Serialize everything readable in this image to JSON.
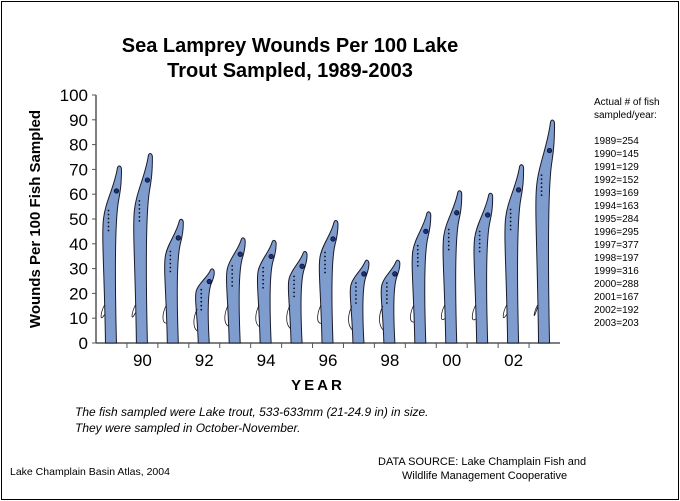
{
  "chart_data": {
    "type": "bar",
    "title": "Sea Lamprey Wounds Per 100 Lake Trout Sampled, 1989-2003",
    "title_lines": [
      "Sea Lamprey Wounds Per 100 Lake",
      "Trout Sampled, 1989-2003"
    ],
    "xlabel": "YEAR",
    "ylabel": "Wounds Per 100 Fish Sampled",
    "ylim": [
      0,
      100
    ],
    "yticks": [
      0,
      10,
      20,
      30,
      40,
      50,
      60,
      70,
      80,
      90,
      100
    ],
    "categories": [
      "1989",
      "1990",
      "1991",
      "1992",
      "1993",
      "1994",
      "1995",
      "1996",
      "1997",
      "1998",
      "1999",
      "2000",
      "2001",
      "2002",
      "2003"
    ],
    "xtick_labels": {
      "1990": "90",
      "1992": "92",
      "1994": "94",
      "1996": "96",
      "1998": "98",
      "2000": "00",
      "2002": "02"
    },
    "values": [
      71.5,
      76.5,
      50,
      30,
      42.5,
      41.5,
      37,
      49.5,
      33.5,
      33.5,
      53,
      61.5,
      60.5,
      72,
      90
    ],
    "bar_style": "sea lamprey silhouettes",
    "bar_color": "#7f9ccf",
    "grid": false
  },
  "legend": {
    "heading": [
      "Actual # of fish",
      "sampled/year:"
    ],
    "entries": [
      "1989=254",
      "1990=145",
      "1991=129",
      "1992=152",
      "1993=169",
      "1994=163",
      "1995=284",
      "1996=295",
      "1997=377",
      "1998=197",
      "1999=316",
      "2000=288",
      "2001=167",
      "2002=192",
      "2003=203"
    ]
  },
  "note": [
    "The fish sampled were Lake trout, 533-633mm (21-24.9 in) in size.",
    "They were sampled in October-November."
  ],
  "credit": "Lake Champlain Basin Atlas, 2004",
  "source": [
    "DATA SOURCE: Lake Champlain Fish and",
    "Wildlife Management Cooperative"
  ]
}
